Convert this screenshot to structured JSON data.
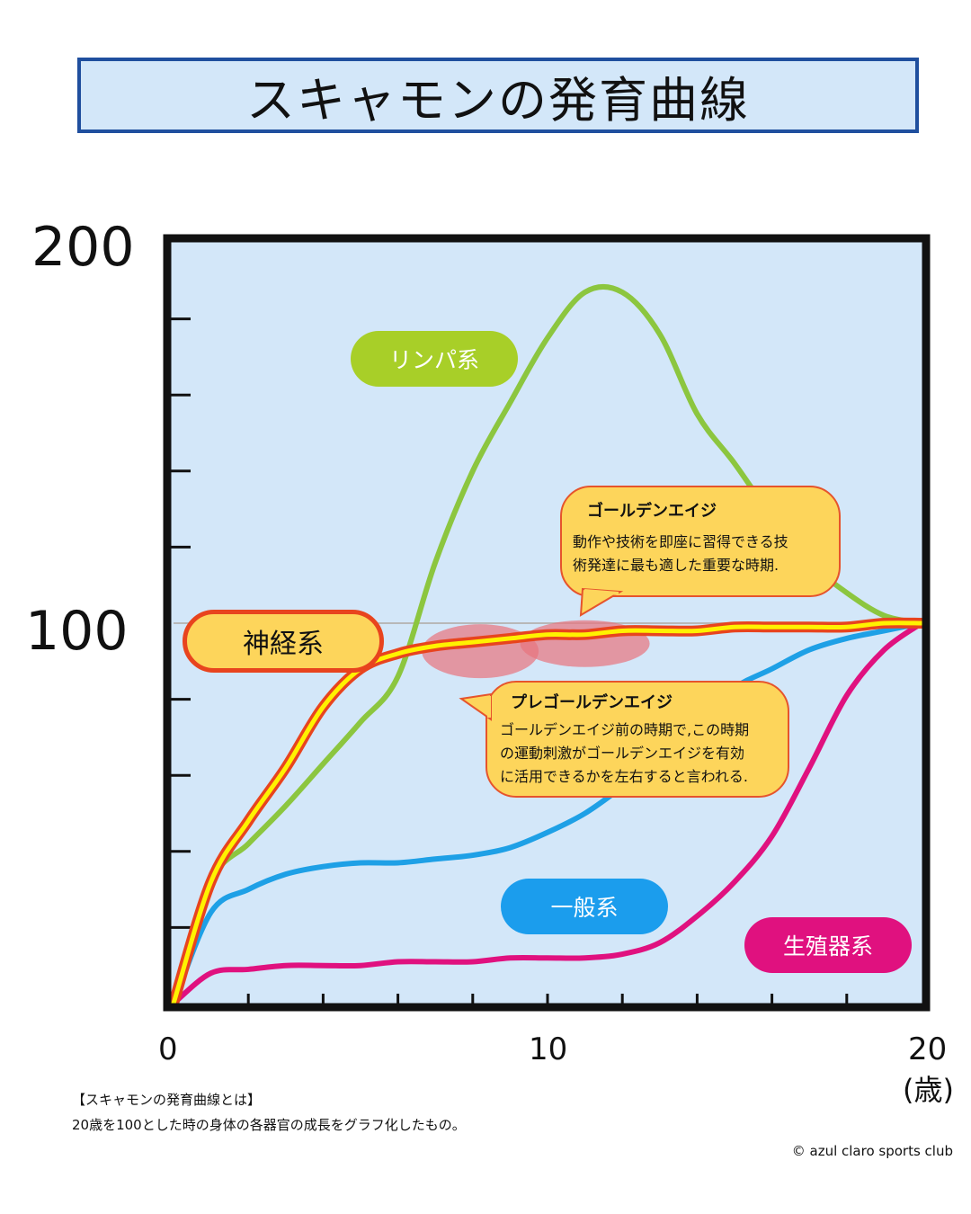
{
  "chart_data": {
    "type": "line",
    "title": "スキャモンの発育曲線",
    "x": [
      0,
      1,
      2,
      3,
      4,
      5,
      6,
      7,
      8,
      9,
      10,
      11,
      12,
      13,
      14,
      15,
      16,
      17,
      18,
      19,
      20
    ],
    "xlim": [
      0,
      20
    ],
    "ylim": [
      0,
      200
    ],
    "x_ticks": [
      "0",
      "10",
      "20"
    ],
    "x_unit": "(歳)",
    "y_ticks": [
      "200",
      "100"
    ],
    "grid": false,
    "reference_line_y": 100,
    "series": [
      {
        "name": "リンパ系",
        "color": "#8cc63f",
        "values": [
          0,
          32,
          42,
          52,
          63,
          74,
          86,
          116,
          140,
          158,
          175,
          187,
          187,
          176,
          155,
          142,
          128,
          116,
          108,
          102,
          100
        ]
      },
      {
        "name": "神経系",
        "color": "#e8441e",
        "highlight": "#fff200",
        "values": [
          0,
          32,
          48,
          62,
          78,
          88,
          92,
          94,
          95,
          96,
          97,
          97,
          98,
          98,
          98,
          99,
          99,
          99,
          99,
          100,
          100
        ]
      },
      {
        "name": "一般系",
        "color": "#1ea0e6",
        "values": [
          0,
          24,
          30,
          34,
          36,
          37,
          37,
          38,
          39,
          41,
          45,
          50,
          57,
          65,
          74,
          83,
          88,
          93,
          96,
          98,
          100
        ]
      },
      {
        "name": "生殖器系",
        "color": "#e0117f",
        "values": [
          0,
          8,
          9,
          10,
          10,
          10,
          11,
          11,
          11,
          12,
          12,
          12,
          13,
          16,
          23,
          32,
          44,
          62,
          81,
          93,
          100
        ]
      }
    ],
    "annotations": [
      {
        "label": "ゴールデンエイジ",
        "text": [
          "動作や技術を即座に習得できる技",
          "術発達に最も適した重要な時期."
        ]
      },
      {
        "label": "プレゴールデンエイジ",
        "text": [
          "ゴールデンエイジ前の時期で,この時期",
          "の運動刺激がゴールデンエイジを有効",
          "に活用できるかを左右すると言われる."
        ]
      }
    ],
    "label_colors": {
      "lymph": "#a8cf28",
      "general": "#1b9ded",
      "reproductive": "#e0117f",
      "neural_fill": "#fdd55b",
      "neural_border": "#e8441e"
    }
  },
  "footnote": {
    "heading": "【スキャモンの発育曲線とは】",
    "body": "20歳を100とした時の身体の各器官の成長をグラフ化したもの。"
  },
  "credit": "© azul claro sports club"
}
